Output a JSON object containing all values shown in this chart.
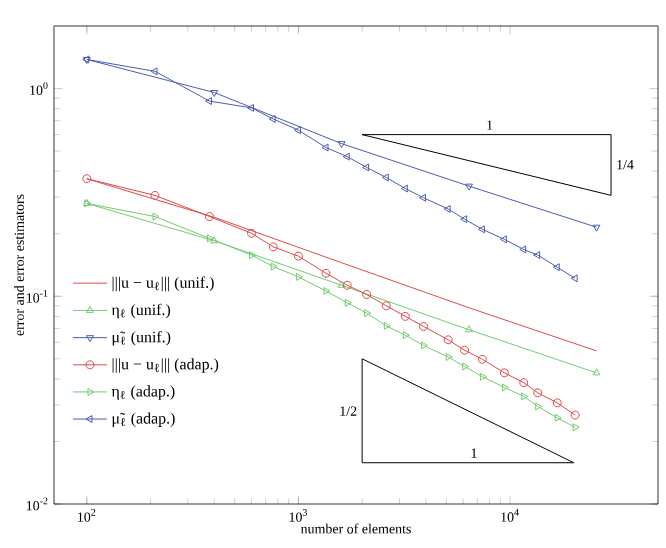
{
  "chart_data": {
    "type": "line",
    "xlabel": "number of elements",
    "ylabel": "error and error estimators",
    "log": "xy",
    "xlim": [
      70,
      50000
    ],
    "ylim": [
      0.01,
      2
    ],
    "xticks": [
      {
        "value": 100,
        "label": "10$^{2}$"
      },
      {
        "value": 1000,
        "label": "10$^{3}$"
      },
      {
        "value": 10000,
        "label": "10$^{4}$"
      }
    ],
    "yticks": [
      {
        "value": 0.01,
        "label": "10$^{-2}$"
      },
      {
        "value": 0.1,
        "label": "10$^{-1}$"
      },
      {
        "value": 1,
        "label": "10$^{0}$"
      }
    ],
    "legend": "left",
    "line_style": "solid",
    "series": [
      {
        "name": "|||u − u$_{ℓ}$||| (unif.)",
        "color": "#e04848",
        "marker": "none",
        "x": [
          100,
          400,
          1600,
          6400,
          25600
        ],
        "values": [
          0.368,
          0.24,
          0.145,
          0.088,
          0.0546
        ]
      },
      {
        "name": "η$_{ℓ}$ (unif.)",
        "color": "#70cc70",
        "marker": "triangle",
        "x": [
          100,
          400,
          1600,
          6400,
          25600
        ],
        "values": [
          0.28,
          0.185,
          0.113,
          0.069,
          0.0428
        ]
      },
      {
        "name": "μ̃$_{ℓ}$ (unif.)",
        "color": "#4a5cb0",
        "marker": "triangle-down",
        "x": [
          100,
          400,
          1600,
          6400,
          25600
        ],
        "values": [
          1.38,
          0.957,
          0.543,
          0.339,
          0.215
        ]
      },
      {
        "name": "|||u − u$_{ℓ}$||| (adap.)",
        "color": "#e04848",
        "marker": "circle",
        "x": [
          100,
          210,
          380,
          600,
          760,
          1000,
          1350,
          1700,
          2100,
          2600,
          3200,
          3900,
          5100,
          6100,
          7400,
          9400,
          11600,
          13500,
          16700,
          20300
        ],
        "values": [
          0.368,
          0.306,
          0.242,
          0.201,
          0.173,
          0.156,
          0.129,
          0.113,
          0.102,
          0.09,
          0.08,
          0.0716,
          0.0617,
          0.055,
          0.0497,
          0.0428,
          0.0384,
          0.0343,
          0.0307,
          0.0268
        ]
      },
      {
        "name": "η$_{ℓ}$ (adap.)",
        "color": "#70cc70",
        "marker": "triangle-right",
        "x": [
          100,
          210,
          380,
          600,
          760,
          1000,
          1350,
          1700,
          2100,
          2600,
          3200,
          3900,
          5100,
          6100,
          7400,
          9400,
          11600,
          13500,
          16700,
          20300
        ],
        "values": [
          0.28,
          0.242,
          0.19,
          0.158,
          0.139,
          0.124,
          0.106,
          0.093,
          0.083,
          0.072,
          0.065,
          0.058,
          0.051,
          0.0459,
          0.041,
          0.0364,
          0.033,
          0.0295,
          0.026,
          0.0234
        ]
      },
      {
        "name": "μ̃$_{ℓ}$ (adap.)",
        "color": "#4a5cb0",
        "marker": "triangle-left",
        "x": [
          100,
          210,
          380,
          600,
          760,
          1000,
          1350,
          1700,
          2100,
          2600,
          3200,
          3900,
          5100,
          6100,
          7400,
          9400,
          11600,
          13500,
          16700,
          20300
        ],
        "values": [
          1.38,
          1.21,
          0.87,
          0.807,
          0.714,
          0.63,
          0.52,
          0.47,
          0.417,
          0.373,
          0.33,
          0.298,
          0.263,
          0.235,
          0.21,
          0.188,
          0.168,
          0.158,
          0.138,
          0.122
        ]
      }
    ],
    "annotations": [
      "1",
      "1/4",
      "1/2",
      "1"
    ]
  }
}
